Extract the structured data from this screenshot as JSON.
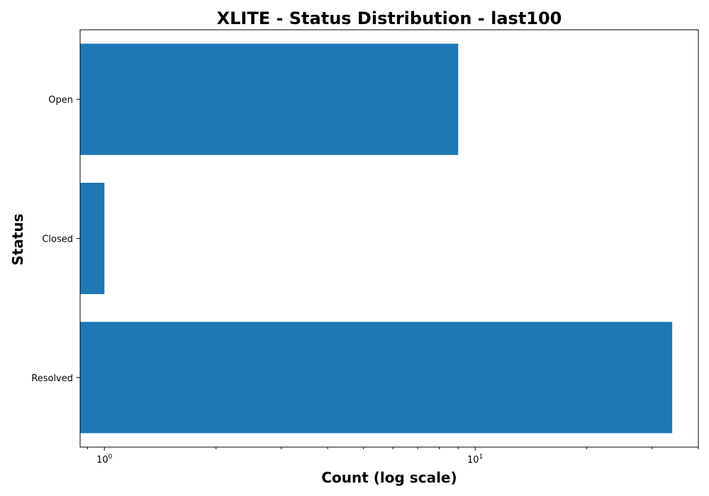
{
  "chart_data": {
    "type": "bar",
    "orientation": "horizontal",
    "title": "XLITE - Status Distribution - last100",
    "xlabel": "Count (log scale)",
    "ylabel": "Status",
    "xscale": "log",
    "xlim": [
      0.86,
      40
    ],
    "x_ticks": [
      {
        "value": 1,
        "base": "10",
        "exp": "0"
      },
      {
        "value": 10,
        "base": "10",
        "exp": "1"
      }
    ],
    "categories": [
      "Open",
      "Closed",
      "Resolved"
    ],
    "values": [
      9,
      1,
      34
    ],
    "bar_color": "#1f77b4",
    "grid": false,
    "legend": "none"
  }
}
